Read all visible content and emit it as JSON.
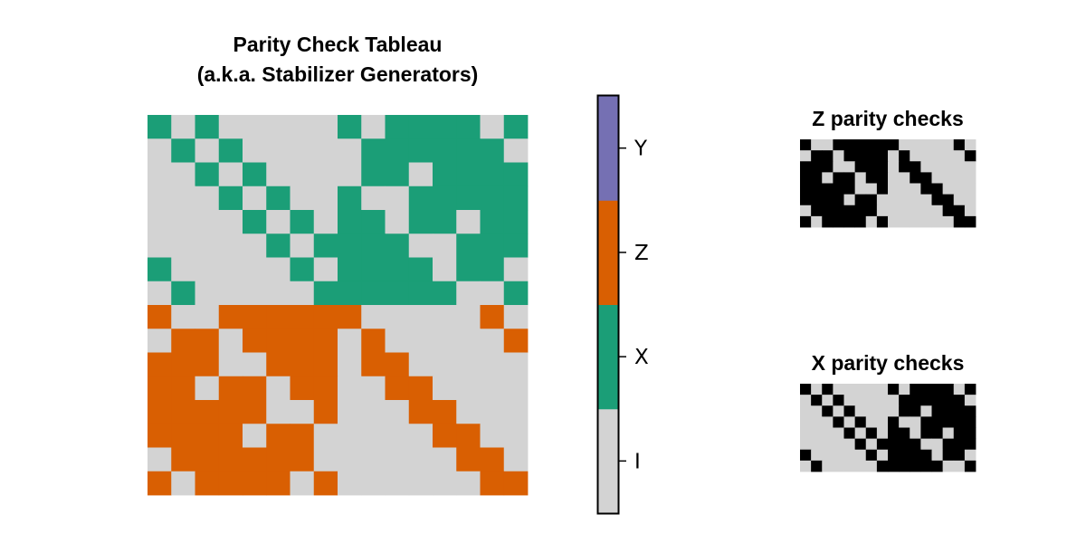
{
  "chart_data": [
    {
      "type": "heatmap",
      "title_lines": [
        "Parity Check Tableau",
        "(a.k.a. Stabilizer Generators)"
      ],
      "encoding": {
        "I": 0,
        "X": 1,
        "Z": 2,
        "Y": 3
      },
      "n_rows": 16,
      "n_cols": 16,
      "rows": [
        [
          1,
          0,
          1,
          0,
          0,
          0,
          0,
          0,
          1,
          0,
          1,
          1,
          1,
          1,
          0,
          1
        ],
        [
          0,
          1,
          0,
          1,
          0,
          0,
          0,
          0,
          0,
          1,
          1,
          1,
          1,
          1,
          1,
          0
        ],
        [
          0,
          0,
          1,
          0,
          1,
          0,
          0,
          0,
          0,
          1,
          1,
          0,
          1,
          1,
          1,
          1
        ],
        [
          0,
          0,
          0,
          1,
          0,
          1,
          0,
          0,
          1,
          0,
          0,
          1,
          1,
          1,
          1,
          1
        ],
        [
          0,
          0,
          0,
          0,
          1,
          0,
          1,
          0,
          1,
          1,
          0,
          1,
          1,
          0,
          1,
          1
        ],
        [
          0,
          0,
          0,
          0,
          0,
          1,
          0,
          1,
          1,
          1,
          1,
          0,
          0,
          1,
          1,
          1
        ],
        [
          1,
          0,
          0,
          0,
          0,
          0,
          1,
          0,
          1,
          1,
          1,
          1,
          0,
          1,
          1,
          0
        ],
        [
          0,
          1,
          0,
          0,
          0,
          0,
          0,
          1,
          1,
          1,
          1,
          1,
          1,
          0,
          0,
          1
        ],
        [
          2,
          0,
          0,
          2,
          2,
          2,
          2,
          2,
          2,
          0,
          0,
          0,
          0,
          0,
          2,
          0
        ],
        [
          0,
          2,
          2,
          0,
          2,
          2,
          2,
          2,
          0,
          2,
          0,
          0,
          0,
          0,
          0,
          2
        ],
        [
          2,
          2,
          2,
          0,
          0,
          2,
          2,
          2,
          0,
          2,
          2,
          0,
          0,
          0,
          0,
          0
        ],
        [
          2,
          2,
          0,
          2,
          2,
          0,
          2,
          2,
          0,
          0,
          2,
          2,
          0,
          0,
          0,
          0
        ],
        [
          2,
          2,
          2,
          2,
          2,
          0,
          0,
          2,
          0,
          0,
          0,
          2,
          2,
          0,
          0,
          0
        ],
        [
          2,
          2,
          2,
          2,
          0,
          2,
          2,
          0,
          0,
          0,
          0,
          0,
          2,
          2,
          0,
          0
        ],
        [
          0,
          2,
          2,
          2,
          2,
          2,
          2,
          0,
          0,
          0,
          0,
          0,
          0,
          2,
          2,
          0
        ],
        [
          2,
          0,
          2,
          2,
          2,
          2,
          0,
          2,
          0,
          0,
          0,
          0,
          0,
          0,
          2,
          2
        ]
      ]
    },
    {
      "type": "heatmap",
      "title": "Z parity checks",
      "n_rows": 8,
      "n_cols": 16,
      "rows": [
        [
          1,
          0,
          0,
          1,
          1,
          1,
          1,
          1,
          1,
          0,
          0,
          0,
          0,
          0,
          1,
          0
        ],
        [
          0,
          1,
          1,
          0,
          1,
          1,
          1,
          1,
          0,
          1,
          0,
          0,
          0,
          0,
          0,
          1
        ],
        [
          1,
          1,
          1,
          0,
          0,
          1,
          1,
          1,
          0,
          1,
          1,
          0,
          0,
          0,
          0,
          0
        ],
        [
          1,
          1,
          0,
          1,
          1,
          0,
          1,
          1,
          0,
          0,
          1,
          1,
          0,
          0,
          0,
          0
        ],
        [
          1,
          1,
          1,
          1,
          1,
          0,
          0,
          1,
          0,
          0,
          0,
          1,
          1,
          0,
          0,
          0
        ],
        [
          1,
          1,
          1,
          1,
          0,
          1,
          1,
          0,
          0,
          0,
          0,
          0,
          1,
          1,
          0,
          0
        ],
        [
          0,
          1,
          1,
          1,
          1,
          1,
          1,
          0,
          0,
          0,
          0,
          0,
          0,
          1,
          1,
          0
        ],
        [
          1,
          0,
          1,
          1,
          1,
          1,
          0,
          1,
          0,
          0,
          0,
          0,
          0,
          0,
          1,
          1
        ]
      ]
    },
    {
      "type": "heatmap",
      "title": "X parity checks",
      "n_rows": 8,
      "n_cols": 16,
      "rows": [
        [
          1,
          0,
          1,
          0,
          0,
          0,
          0,
          0,
          1,
          0,
          1,
          1,
          1,
          1,
          0,
          1
        ],
        [
          0,
          1,
          0,
          1,
          0,
          0,
          0,
          0,
          0,
          1,
          1,
          1,
          1,
          1,
          1,
          0
        ],
        [
          0,
          0,
          1,
          0,
          1,
          0,
          0,
          0,
          0,
          1,
          1,
          0,
          1,
          1,
          1,
          1
        ],
        [
          0,
          0,
          0,
          1,
          0,
          1,
          0,
          0,
          1,
          0,
          0,
          1,
          1,
          1,
          1,
          1
        ],
        [
          0,
          0,
          0,
          0,
          1,
          0,
          1,
          0,
          1,
          1,
          0,
          1,
          1,
          0,
          1,
          1
        ],
        [
          0,
          0,
          0,
          0,
          0,
          1,
          0,
          1,
          1,
          1,
          1,
          0,
          0,
          1,
          1,
          1
        ],
        [
          1,
          0,
          0,
          0,
          0,
          0,
          1,
          0,
          1,
          1,
          1,
          1,
          0,
          1,
          1,
          0
        ],
        [
          0,
          1,
          0,
          0,
          0,
          0,
          0,
          1,
          1,
          1,
          1,
          1,
          1,
          0,
          0,
          1
        ]
      ]
    }
  ],
  "colorbar": {
    "labels": [
      "I",
      "X",
      "Z",
      "Y"
    ],
    "colors": [
      "#d3d3d3",
      "#1b9e77",
      "#d95f02",
      "#7570b3"
    ]
  },
  "palette": {
    "zero": "#d3d3d3",
    "one": "#000000"
  }
}
